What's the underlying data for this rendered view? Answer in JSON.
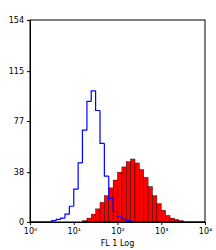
{
  "chart_data": {
    "type": "histogram",
    "x_label": "FL 1 Log",
    "log": "x",
    "xlim": [
      1,
      10000
    ],
    "xticks": [
      {
        "value": 1,
        "label": "10⁰"
      },
      {
        "value": 10,
        "label": "10¹"
      },
      {
        "value": 100,
        "label": "10²"
      },
      {
        "value": 1000,
        "label": "10³"
      },
      {
        "value": 10000,
        "label": "10⁴"
      }
    ],
    "ylim": [
      0,
      154
    ],
    "yticks": [
      0,
      38,
      77,
      115,
      154
    ],
    "bins": [
      1,
      1.26,
      1.58,
      2,
      2.51,
      3.16,
      3.98,
      5.01,
      6.31,
      7.94,
      10,
      12.6,
      15.8,
      20,
      25.1,
      31.6,
      39.8,
      50.1,
      63.1,
      79.4,
      100,
      126,
      158,
      200,
      251,
      316,
      398,
      501,
      631,
      794,
      1000,
      1259,
      1585,
      1995,
      2512,
      3162,
      3981,
      5012,
      6310,
      7943,
      10000
    ],
    "series": [
      {
        "type": "bar",
        "color": "#ff0000",
        "values": [
          0,
          0,
          0,
          0,
          0,
          0,
          0,
          0,
          0,
          0,
          0,
          0,
          1,
          3,
          6,
          10,
          15,
          20,
          26,
          32,
          38,
          42,
          46,
          48,
          45,
          40,
          34,
          27,
          20,
          14,
          9,
          5,
          3,
          2,
          1,
          0,
          0,
          0,
          0,
          0
        ]
      },
      {
        "type": "step",
        "color": "#0000ff",
        "values": [
          0,
          0,
          0,
          0,
          0,
          1,
          2,
          3,
          6,
          12,
          25,
          45,
          70,
          92,
          100,
          85,
          60,
          35,
          18,
          8,
          4,
          2,
          1,
          0,
          0,
          0,
          0,
          0,
          0,
          0,
          0,
          0,
          0,
          0,
          0,
          0,
          0,
          0,
          0,
          0
        ]
      }
    ]
  }
}
